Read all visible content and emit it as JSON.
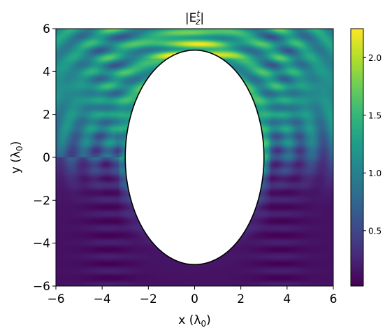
{
  "chart_data": {
    "type": "heatmap",
    "title": "|E_z^t|",
    "xlabel": "x (λ0)",
    "ylabel": "y (λ0)",
    "xlim": [
      -6,
      6
    ],
    "ylim": [
      -6,
      6
    ],
    "x_ticks": [
      -6,
      -4,
      -2,
      0,
      2,
      4,
      6
    ],
    "x_tick_labels": [
      "−6",
      "−4",
      "−2",
      "0",
      "2",
      "4",
      "6"
    ],
    "y_ticks": [
      -6,
      -4,
      -2,
      0,
      2,
      4,
      6
    ],
    "y_tick_labels": [
      "−6",
      "−4",
      "−2",
      "0",
      "2",
      "4",
      "6"
    ],
    "colormap": "viridis",
    "colorbar": {
      "range": [
        0.02,
        2.25
      ],
      "ticks": [
        0.5,
        1.0,
        1.5,
        2.0
      ],
      "tick_labels": [
        "0.5",
        "1.0",
        "1.5",
        "2.0"
      ]
    },
    "obstacle": {
      "shape": "ellipse",
      "center": [
        0,
        0
      ],
      "semi_axis_x": 3,
      "semi_axis_y": 5,
      "fill": "#ffffff",
      "edge": "#000000"
    },
    "field_features": {
      "peak_value": 2.25,
      "peak_location": [
        0,
        5.3
      ],
      "shadow_region": "below ellipse (y < -3)",
      "shadow_value": 0.05
    }
  }
}
